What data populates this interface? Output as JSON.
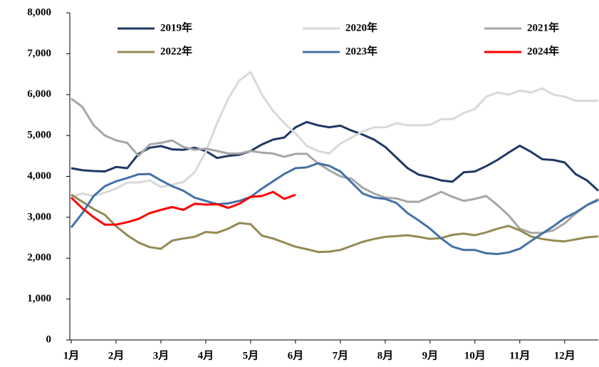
{
  "chart_data": {
    "type": "line",
    "categories": [
      "1月",
      null,
      null,
      null,
      "2月",
      null,
      null,
      null,
      "3月",
      null,
      null,
      null,
      "4月",
      null,
      null,
      null,
      "5月",
      null,
      null,
      null,
      "6月",
      null,
      null,
      null,
      "7月",
      null,
      null,
      null,
      "8月",
      null,
      null,
      null,
      "9月",
      null,
      null,
      null,
      "10月",
      null,
      null,
      null,
      "11月",
      null,
      null,
      null,
      "12月",
      null,
      null,
      null
    ],
    "ylim": [
      0,
      8000
    ],
    "yticks": [
      {
        "value": 0,
        "label": "0"
      },
      {
        "value": 1000,
        "label": "1,000"
      },
      {
        "value": 2000,
        "label": "2,000"
      },
      {
        "value": 3000,
        "label": "3,000"
      },
      {
        "value": 4000,
        "label": "4,000"
      },
      {
        "value": 5000,
        "label": "5,000"
      },
      {
        "value": 6000,
        "label": "6,000"
      },
      {
        "value": 7000,
        "label": "7,000"
      },
      {
        "value": 8000,
        "label": "8,000"
      }
    ],
    "grid": false,
    "legend": "top",
    "series": [
      {
        "name": "2019年",
        "color": "#1f3864",
        "values": [
          4200,
          4150,
          4130,
          4120,
          4230,
          4200,
          4550,
          4700,
          4740,
          4660,
          4650,
          4700,
          4620,
          4450,
          4500,
          4530,
          4620,
          4780,
          4900,
          4950,
          5200,
          5330,
          5250,
          5200,
          5240,
          5120,
          5020,
          4900,
          4720,
          4460,
          4200,
          4040,
          3980,
          3900,
          3870,
          4100,
          4120,
          4250,
          4400,
          4580,
          4750,
          4600,
          4420,
          4400,
          4340,
          4050,
          3900,
          3650
        ]
      },
      {
        "name": "2020年",
        "color": "#d9d9d9",
        "values": [
          3500,
          3580,
          3520,
          3600,
          3700,
          3850,
          3850,
          3900,
          3740,
          3800,
          3860,
          4100,
          4600,
          5300,
          5900,
          6350,
          6550,
          6000,
          5600,
          5300,
          5050,
          4750,
          4620,
          4560,
          4800,
          4950,
          5100,
          5200,
          5200,
          5300,
          5250,
          5250,
          5260,
          5400,
          5400,
          5550,
          5650,
          5950,
          6050,
          6000,
          6100,
          6050,
          6150,
          6000,
          5950,
          5850,
          5850,
          5850
        ]
      },
      {
        "name": "2021年",
        "color": "#a6a6a6",
        "values": [
          5900,
          5700,
          5250,
          5000,
          4880,
          4820,
          4500,
          4780,
          4820,
          4880,
          4720,
          4650,
          4680,
          4620,
          4560,
          4560,
          4620,
          4580,
          4560,
          4480,
          4550,
          4550,
          4320,
          4150,
          4000,
          3940,
          3720,
          3580,
          3480,
          3460,
          3380,
          3380,
          3500,
          3620,
          3500,
          3400,
          3450,
          3520,
          3300,
          3050,
          2720,
          2620,
          2620,
          2680,
          2850,
          3100,
          3300,
          3450
        ]
      },
      {
        "name": "2022年",
        "color": "#948a54",
        "values": [
          3550,
          3380,
          3200,
          3060,
          2780,
          2560,
          2380,
          2270,
          2230,
          2430,
          2480,
          2520,
          2640,
          2620,
          2720,
          2860,
          2830,
          2550,
          2480,
          2380,
          2280,
          2220,
          2150,
          2160,
          2200,
          2300,
          2400,
          2470,
          2520,
          2540,
          2560,
          2520,
          2470,
          2490,
          2570,
          2600,
          2560,
          2630,
          2720,
          2790,
          2680,
          2530,
          2470,
          2430,
          2410,
          2460,
          2510,
          2530
        ]
      },
      {
        "name": "2023年",
        "color": "#4471a6",
        "values": [
          2750,
          3100,
          3520,
          3760,
          3880,
          3960,
          4050,
          4060,
          3900,
          3760,
          3650,
          3480,
          3400,
          3320,
          3340,
          3400,
          3500,
          3700,
          3880,
          4060,
          4200,
          4220,
          4320,
          4260,
          4120,
          3850,
          3580,
          3480,
          3450,
          3350,
          3100,
          2920,
          2720,
          2480,
          2280,
          2200,
          2200,
          2120,
          2100,
          2140,
          2230,
          2420,
          2600,
          2780,
          2980,
          3120,
          3300,
          3420
        ]
      },
      {
        "name": "2024年",
        "color": "#ff0000",
        "values": [
          3480,
          3220,
          3000,
          2820,
          2820,
          2880,
          2960,
          3100,
          3180,
          3250,
          3180,
          3330,
          3310,
          3320,
          3230,
          3330,
          3500,
          3520,
          3620,
          3450,
          3550,
          null,
          null,
          null,
          null,
          null,
          null,
          null,
          null,
          null,
          null,
          null,
          null,
          null,
          null,
          null,
          null,
          null,
          null,
          null,
          null,
          null,
          null,
          null,
          null,
          null,
          null,
          null
        ]
      }
    ]
  }
}
